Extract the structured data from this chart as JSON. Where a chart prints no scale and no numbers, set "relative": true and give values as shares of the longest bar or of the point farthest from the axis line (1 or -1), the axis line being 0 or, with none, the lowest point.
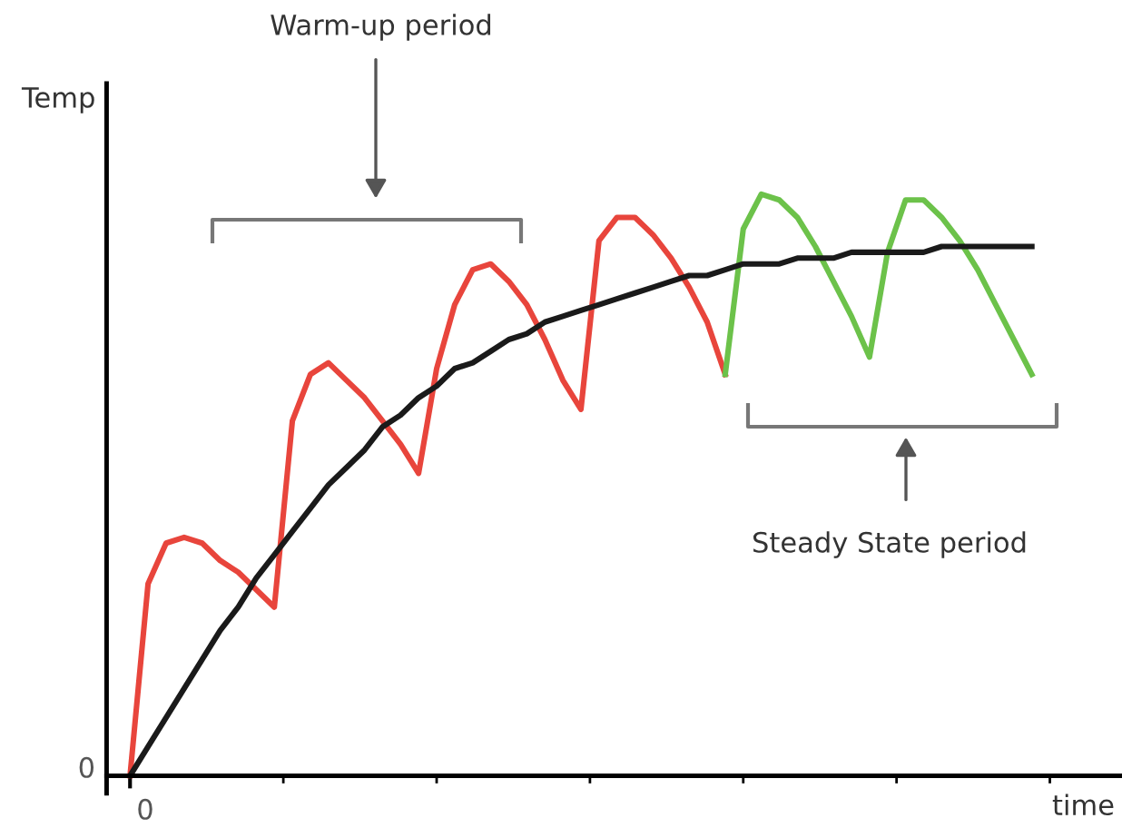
{
  "chart_data": {
    "type": "line",
    "relative": true,
    "ylabel": "Temp",
    "xlabel": "time",
    "categories": [
      null,
      null,
      null,
      null,
      null,
      null,
      null,
      null,
      null,
      null,
      null,
      null,
      null,
      null,
      null,
      null,
      null,
      null,
      null,
      null,
      null,
      null,
      null,
      null,
      null,
      null,
      null,
      null,
      null,
      null,
      null,
      null,
      null,
      null,
      null,
      null,
      null,
      null,
      null,
      null,
      null,
      null,
      null,
      null,
      null,
      null,
      null,
      null,
      null,
      null,
      null
    ],
    "series": [
      {
        "color": "#e8453c",
        "values": [
          0,
          0.33,
          0.4,
          0.41,
          0.4,
          0.37,
          0.35,
          0.32,
          0.29,
          0.61,
          0.69,
          0.71,
          0.68,
          0.65,
          0.61,
          0.57,
          0.52,
          0.7,
          0.81,
          0.87,
          0.88,
          0.85,
          0.81,
          0.75,
          0.68,
          0.63,
          0.92,
          0.96,
          0.96,
          0.93,
          0.89,
          0.84,
          0.78,
          0.69,
          null,
          null,
          null,
          null,
          null,
          null,
          null,
          null,
          null,
          null,
          null,
          null,
          null,
          null,
          null,
          null,
          null
        ]
      },
      {
        "color": "#6cc24a",
        "values": [
          null,
          null,
          null,
          null,
          null,
          null,
          null,
          null,
          null,
          null,
          null,
          null,
          null,
          null,
          null,
          null,
          null,
          null,
          null,
          null,
          null,
          null,
          null,
          null,
          null,
          null,
          null,
          null,
          null,
          null,
          null,
          null,
          null,
          0.69,
          0.94,
          1,
          0.99,
          0.96,
          0.91,
          0.85,
          0.79,
          0.72,
          0.9,
          0.99,
          0.99,
          0.96,
          0.92,
          0.87,
          0.81,
          0.75,
          0.69
        ]
      },
      {
        "color": "#1a1a1a",
        "values": [
          0,
          0.05,
          0.1,
          0.15,
          0.2,
          0.25,
          0.29,
          0.34,
          0.38,
          0.42,
          0.46,
          0.5,
          0.53,
          0.56,
          0.6,
          0.62,
          0.65,
          0.67,
          0.7,
          0.71,
          0.73,
          0.75,
          0.76,
          0.78,
          0.79,
          0.8,
          0.81,
          0.82,
          0.83,
          0.84,
          0.85,
          0.86,
          0.86,
          0.87,
          0.88,
          0.88,
          0.88,
          0.89,
          0.89,
          0.89,
          0.9,
          0.9,
          0.9,
          0.9,
          0.9,
          0.91,
          0.91,
          0.91,
          0.91,
          0.91,
          0.91
        ]
      }
    ],
    "annotations": [
      "Warm-up period",
      "Steady State period",
      "0",
      "0"
    ]
  }
}
